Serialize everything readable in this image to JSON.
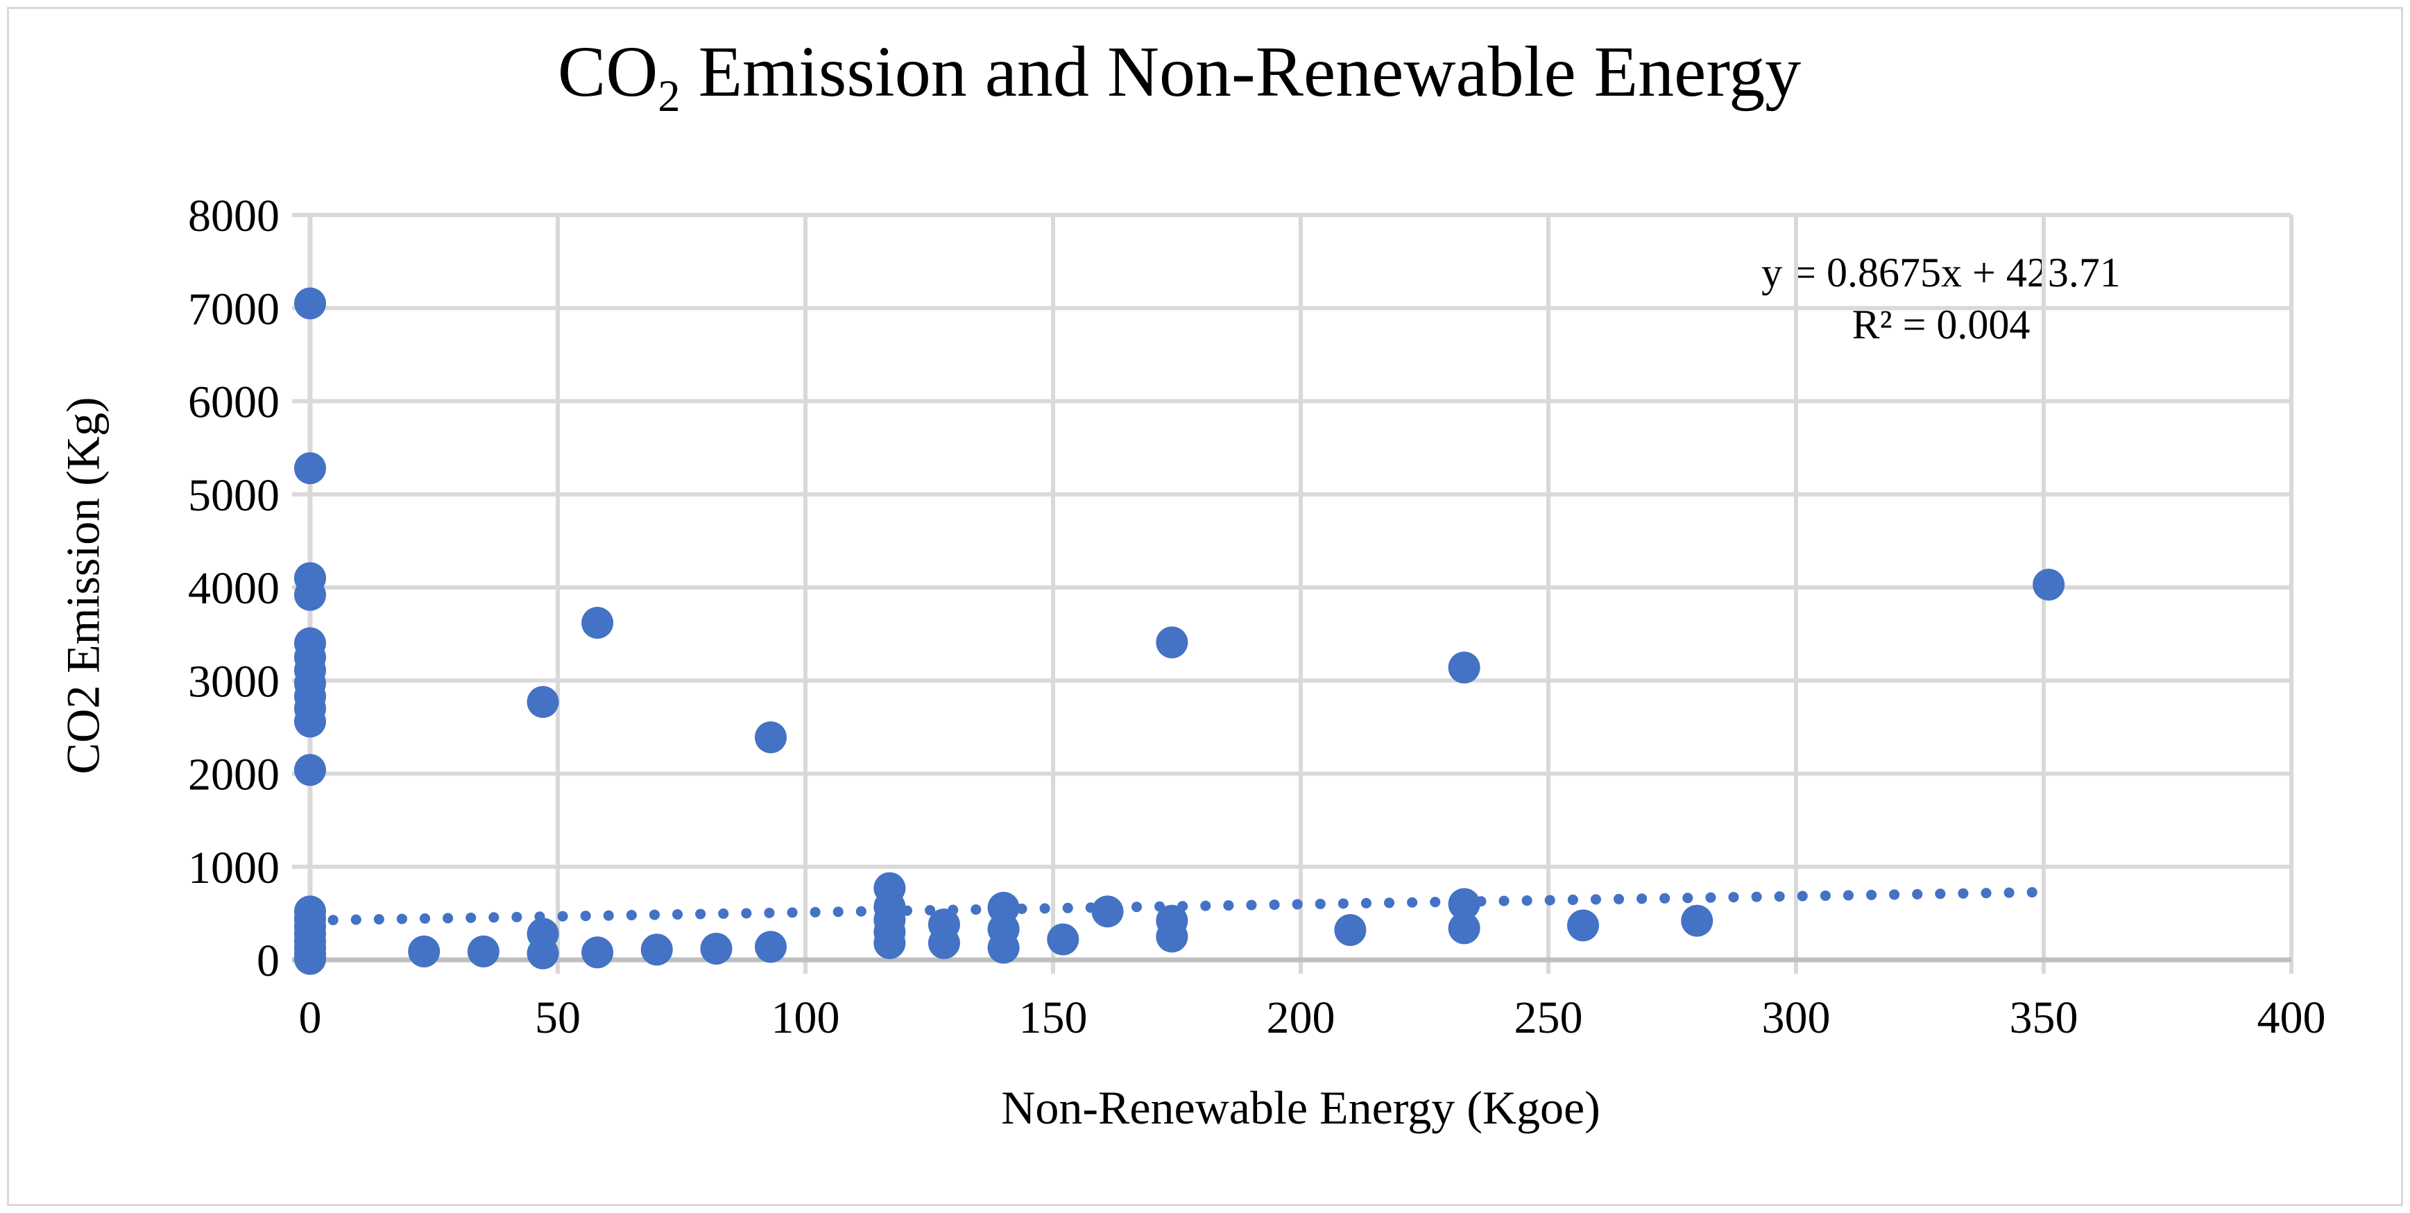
{
  "figure": {
    "background": "#FFFFFF",
    "frame_border_color": "#D9D9D9"
  },
  "title_prefix": "CO",
  "title_sub": "2",
  "title_rest": " Emission and Non-Renewable Energy",
  "chart_data": {
    "type": "scatter",
    "title": "CO2 Emission and Non-Renewable Energy",
    "xlabel": "Non-Renewable Energy (Kgoe)",
    "ylabel": "CO2 Emission (Kg)",
    "xlim": [
      0,
      400
    ],
    "ylim": [
      0,
      8000
    ],
    "x_ticks": [
      0,
      50,
      100,
      150,
      200,
      250,
      300,
      350,
      400
    ],
    "y_ticks": [
      0,
      1000,
      2000,
      3000,
      4000,
      5000,
      6000,
      7000,
      8000
    ],
    "grid": true,
    "legend": "none",
    "marker_color": "#4472C4",
    "gridline_color": "#D9D9D9",
    "axis_line_color": "#BFBFBF",
    "points": [
      [
        0,
        7050
      ],
      [
        0,
        5280
      ],
      [
        0,
        4100
      ],
      [
        0,
        3920
      ],
      [
        0,
        3400
      ],
      [
        0,
        3250
      ],
      [
        0,
        3110
      ],
      [
        0,
        2970
      ],
      [
        0,
        2830
      ],
      [
        0,
        2700
      ],
      [
        0,
        2560
      ],
      [
        0,
        2040
      ],
      [
        0,
        520
      ],
      [
        0,
        440
      ],
      [
        0,
        360
      ],
      [
        0,
        280
      ],
      [
        0,
        200
      ],
      [
        0,
        130
      ],
      [
        0,
        60
      ],
      [
        0,
        10
      ],
      [
        23,
        90
      ],
      [
        35,
        90
      ],
      [
        47,
        2770
      ],
      [
        47,
        280
      ],
      [
        47,
        70
      ],
      [
        58,
        3620
      ],
      [
        58,
        80
      ],
      [
        70,
        110
      ],
      [
        82,
        120
      ],
      [
        93,
        2390
      ],
      [
        93,
        140
      ],
      [
        117,
        770
      ],
      [
        117,
        570
      ],
      [
        117,
        430
      ],
      [
        117,
        300
      ],
      [
        117,
        180
      ],
      [
        128,
        380
      ],
      [
        128,
        180
      ],
      [
        140,
        560
      ],
      [
        140,
        330
      ],
      [
        140,
        130
      ],
      [
        152,
        220
      ],
      [
        161,
        520
      ],
      [
        174,
        3410
      ],
      [
        174,
        420
      ],
      [
        174,
        250
      ],
      [
        210,
        320
      ],
      [
        233,
        3140
      ],
      [
        233,
        600
      ],
      [
        233,
        340
      ],
      [
        257,
        370
      ],
      [
        280,
        420
      ],
      [
        351,
        4030
      ]
    ],
    "trendline": {
      "style": "dotted",
      "slope": 0.8675,
      "intercept": 423.71,
      "x_start": 0,
      "x_end": 351,
      "label_line1": "y = 0.8675x + 423.71",
      "label_line2": "R² = 0.004"
    }
  }
}
